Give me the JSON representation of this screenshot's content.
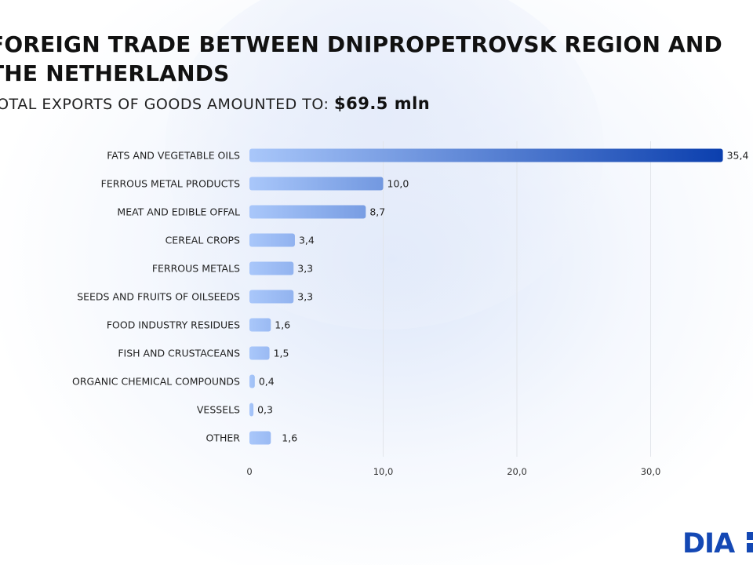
{
  "header": {
    "title": "FOREIGN TRADE BETWEEN DNIPROPETROVSK REGION AND THE NETHERLANDS",
    "subtitle_prefix": "TOTAL EXPORTS OF GOODS AMOUNTED TO:",
    "subtitle_amount": "$69.5 mln"
  },
  "logo": {
    "text": "DIA"
  },
  "colors": {
    "bar_light": "#a9c7fa",
    "bar_dark": "#0b3fae",
    "grid": "#e2e5ea",
    "brand": "#1448b4"
  },
  "chart_data": {
    "type": "bar",
    "orientation": "horizontal",
    "categories": [
      "FATS AND VEGETABLE OILS",
      "FERROUS METAL PRODUCTS",
      "MEAT AND EDIBLE OFFAL",
      "CEREAL CROPS",
      "FERROUS METALS",
      "SEEDS AND FRUITS OF OILSEEDS",
      "FOOD INDUSTRY RESIDUES",
      "FISH AND CRUSTACEANS",
      "ORGANIC CHEMICAL COMPOUNDS",
      "VESSELS",
      "OTHER"
    ],
    "values": [
      35.4,
      10.0,
      8.7,
      3.4,
      3.3,
      3.3,
      1.6,
      1.5,
      0.4,
      0.3,
      1.6
    ],
    "value_labels": [
      "35,4",
      "10,0",
      "8,7",
      "3,4",
      "3,3",
      "3,3",
      "1,6",
      "1,5",
      "0,4",
      "0,3",
      "1,6"
    ],
    "x_ticks": [
      0,
      10,
      20,
      30
    ],
    "x_tick_labels": [
      "0",
      "10,0",
      "20,0",
      "30,0"
    ],
    "xlim": [
      0,
      35.4
    ],
    "grid": true,
    "legend": "none"
  }
}
